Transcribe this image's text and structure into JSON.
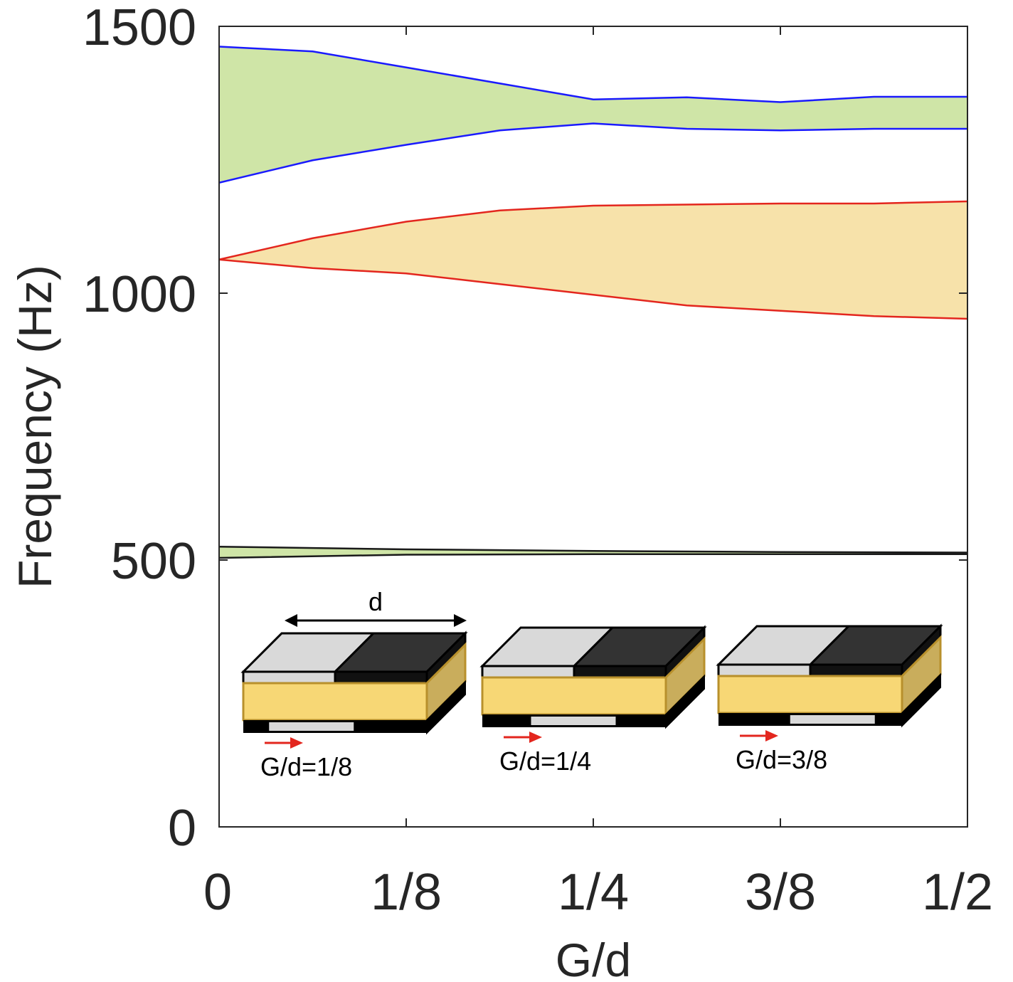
{
  "chart_data": {
    "type": "area",
    "xlabel": "G/d",
    "ylabel": "Frequency (Hz)",
    "xlim": [
      0,
      0.5
    ],
    "ylim": [
      0,
      1500
    ],
    "x_ticks": [
      {
        "value": 0,
        "label": "0"
      },
      {
        "value": 0.125,
        "label": "1/8"
      },
      {
        "value": 0.25,
        "label": "1/4"
      },
      {
        "value": 0.375,
        "label": "3/8"
      },
      {
        "value": 0.5,
        "label": "1/2"
      }
    ],
    "y_ticks": [
      {
        "value": 0,
        "label": "0"
      },
      {
        "value": 500,
        "label": "500"
      },
      {
        "value": 1000,
        "label": "1000"
      },
      {
        "value": 1500,
        "label": "1500"
      }
    ],
    "grid": false,
    "bands": [
      {
        "fill": "#cfe5a7",
        "edge": "#1a1aff",
        "x": [
          0,
          0.0625,
          0.125,
          0.1875,
          0.25,
          0.3125,
          0.375,
          0.4375,
          0.5
        ],
        "upper": [
          1462,
          1453,
          1423,
          1393,
          1363,
          1367,
          1358,
          1368,
          1368
        ],
        "lower": [
          1207,
          1249,
          1278,
          1305,
          1318,
          1308,
          1305,
          1308,
          1308
        ]
      },
      {
        "fill": "#f7e2aa",
        "edge": "#e3261e",
        "x": [
          0,
          0.0625,
          0.125,
          0.1875,
          0.25,
          0.3125,
          0.375,
          0.4375,
          0.5
        ],
        "upper": [
          1063,
          1103,
          1134,
          1155,
          1164,
          1166,
          1168,
          1168,
          1172
        ],
        "lower": [
          1063,
          1047,
          1037,
          1017,
          997,
          977,
          967,
          957,
          952
        ]
      },
      {
        "fill": "#cfe5a7",
        "edge": "#1a1a1a",
        "x": [
          0,
          0.125,
          0.25,
          0.375,
          0.5
        ],
        "upper": [
          525,
          520,
          517,
          515,
          514
        ],
        "lower": [
          504,
          510,
          511,
          511,
          511
        ]
      }
    ],
    "annotations": {
      "dimension_label": "d",
      "cells": [
        {
          "label": "G/d=1/8",
          "ratio": 0.125
        },
        {
          "label": "G/d=1/4",
          "ratio": 0.25
        },
        {
          "label": "G/d=3/8",
          "ratio": 0.375
        }
      ]
    }
  }
}
